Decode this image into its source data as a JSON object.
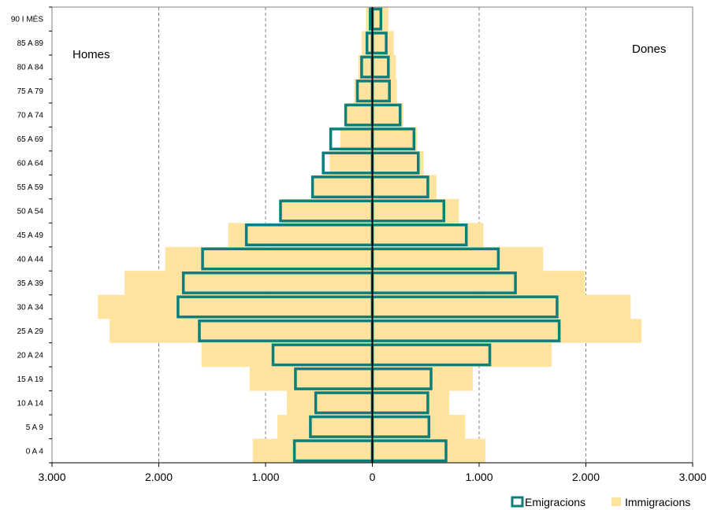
{
  "chart_data": {
    "type": "bar",
    "title": "",
    "orientation": "horizontal-pyramid",
    "categories": [
      "0 A 4",
      "5 A 9",
      "10 A 14",
      "15 A 19",
      "20 A 24",
      "25 A 29",
      "30 A 34",
      "35 A 39",
      "40 A 44",
      "45 A 49",
      "50 A 54",
      "55 A 59",
      "60 A 64",
      "65 A 69",
      "70 A 74",
      "75 A 79",
      "80 A 84",
      "85 A 89",
      "90 I MÉS"
    ],
    "left_label": "Homes",
    "right_label": "Dones",
    "xlim": [
      -3000,
      3000
    ],
    "x_ticks": [
      -3000,
      -2000,
      -1000,
      0,
      1000,
      2000,
      3000
    ],
    "x_tick_labels": [
      "3.000",
      "2.000",
      "1.000",
      "0",
      "1.000",
      "2.000",
      "3.000"
    ],
    "grid": "vertical dashed",
    "series": [
      {
        "name": "Immigracions",
        "style": "filled",
        "color": "#FFE39F",
        "homes": [
          1120,
          890,
          800,
          1150,
          1600,
          2460,
          2570,
          2320,
          1940,
          1350,
          850,
          560,
          400,
          300,
          250,
          170,
          130,
          100,
          60
        ],
        "dones": [
          1060,
          870,
          720,
          940,
          1680,
          2520,
          2420,
          1990,
          1600,
          1040,
          810,
          600,
          480,
          420,
          290,
          230,
          220,
          200,
          150
        ]
      },
      {
        "name": "Emigracions",
        "style": "outline",
        "color": "#0A7F7B",
        "homes": [
          730,
          580,
          530,
          720,
          930,
          1620,
          1820,
          1770,
          1590,
          1180,
          860,
          560,
          460,
          390,
          250,
          140,
          100,
          50,
          20
        ],
        "dones": [
          690,
          530,
          520,
          550,
          1100,
          1750,
          1730,
          1340,
          1180,
          880,
          670,
          520,
          430,
          390,
          260,
          160,
          150,
          130,
          80
        ]
      }
    ],
    "legend": [
      "Emigracions",
      "Immigracions"
    ],
    "legend_position": "bottom-right"
  }
}
